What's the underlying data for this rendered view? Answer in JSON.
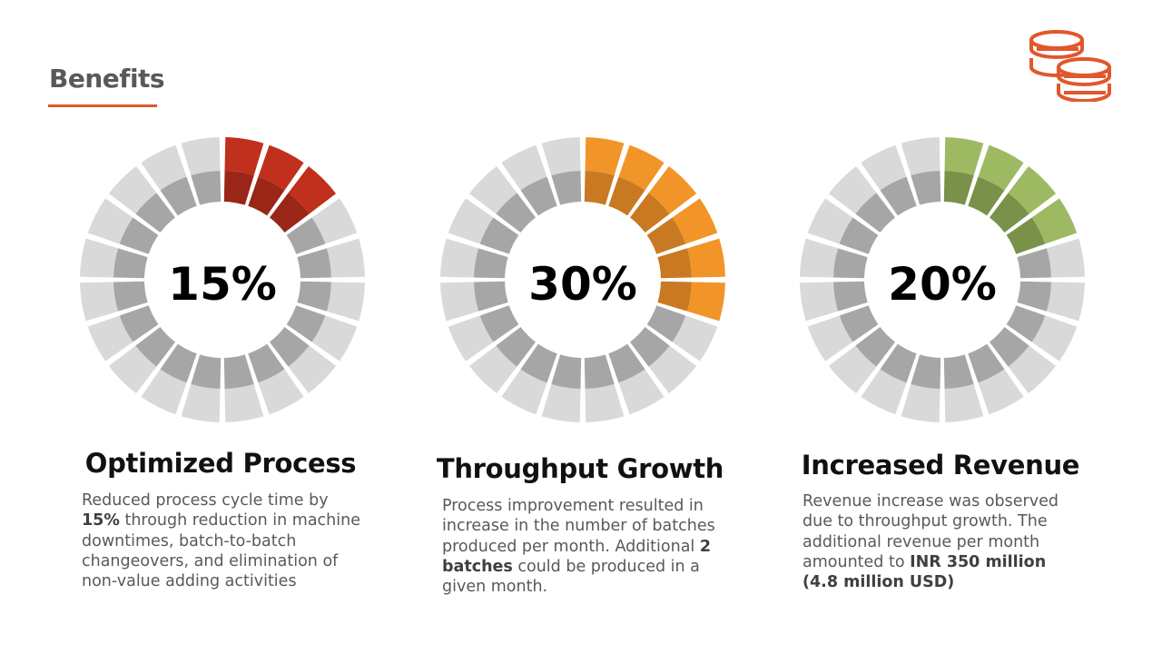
{
  "slide": {
    "title": "Benefits"
  },
  "header_icon": {
    "name": "coins-icon",
    "color": "#E2572B"
  },
  "ring_colors": {
    "background_outer": "#D9D9D9",
    "background_inner": "#A6A6A6"
  },
  "cards": [
    {
      "percent_text": "15%",
      "percent_value": 15,
      "accent_outer": "#C0301C",
      "accent_inner": "#9A2617",
      "heading": "Optimized Process",
      "body": [
        {
          "text": "Reduced process cycle time by ",
          "bold": false
        },
        {
          "text": "15%",
          "bold": true
        },
        {
          "text": " through  reduction in machine downtimes, batch-to-batch changeovers, and elimination of non-value adding activities",
          "bold": false
        }
      ]
    },
    {
      "percent_text": "30%",
      "percent_value": 30,
      "accent_outer": "#F29528",
      "accent_inner": "#C97922",
      "heading": "Throughput Growth",
      "body": [
        {
          "text": "Process improvement resulted in increase in the number of batches produced per month. Additional ",
          "bold": false
        },
        {
          "text": "2 batches",
          "bold": true
        },
        {
          "text": " could be produced in a given month.",
          "bold": false
        }
      ]
    },
    {
      "percent_text": "20%",
      "percent_value": 20,
      "accent_outer": "#9DBA63",
      "accent_inner": "#7A9149",
      "heading": "Increased Revenue",
      "body": [
        {
          "text": "Revenue increase was observed due to throughput growth. The additional revenue per month amounted to ",
          "bold": false
        },
        {
          "text": "INR 350 million (4.8 million USD)",
          "bold": true
        }
      ]
    }
  ]
}
